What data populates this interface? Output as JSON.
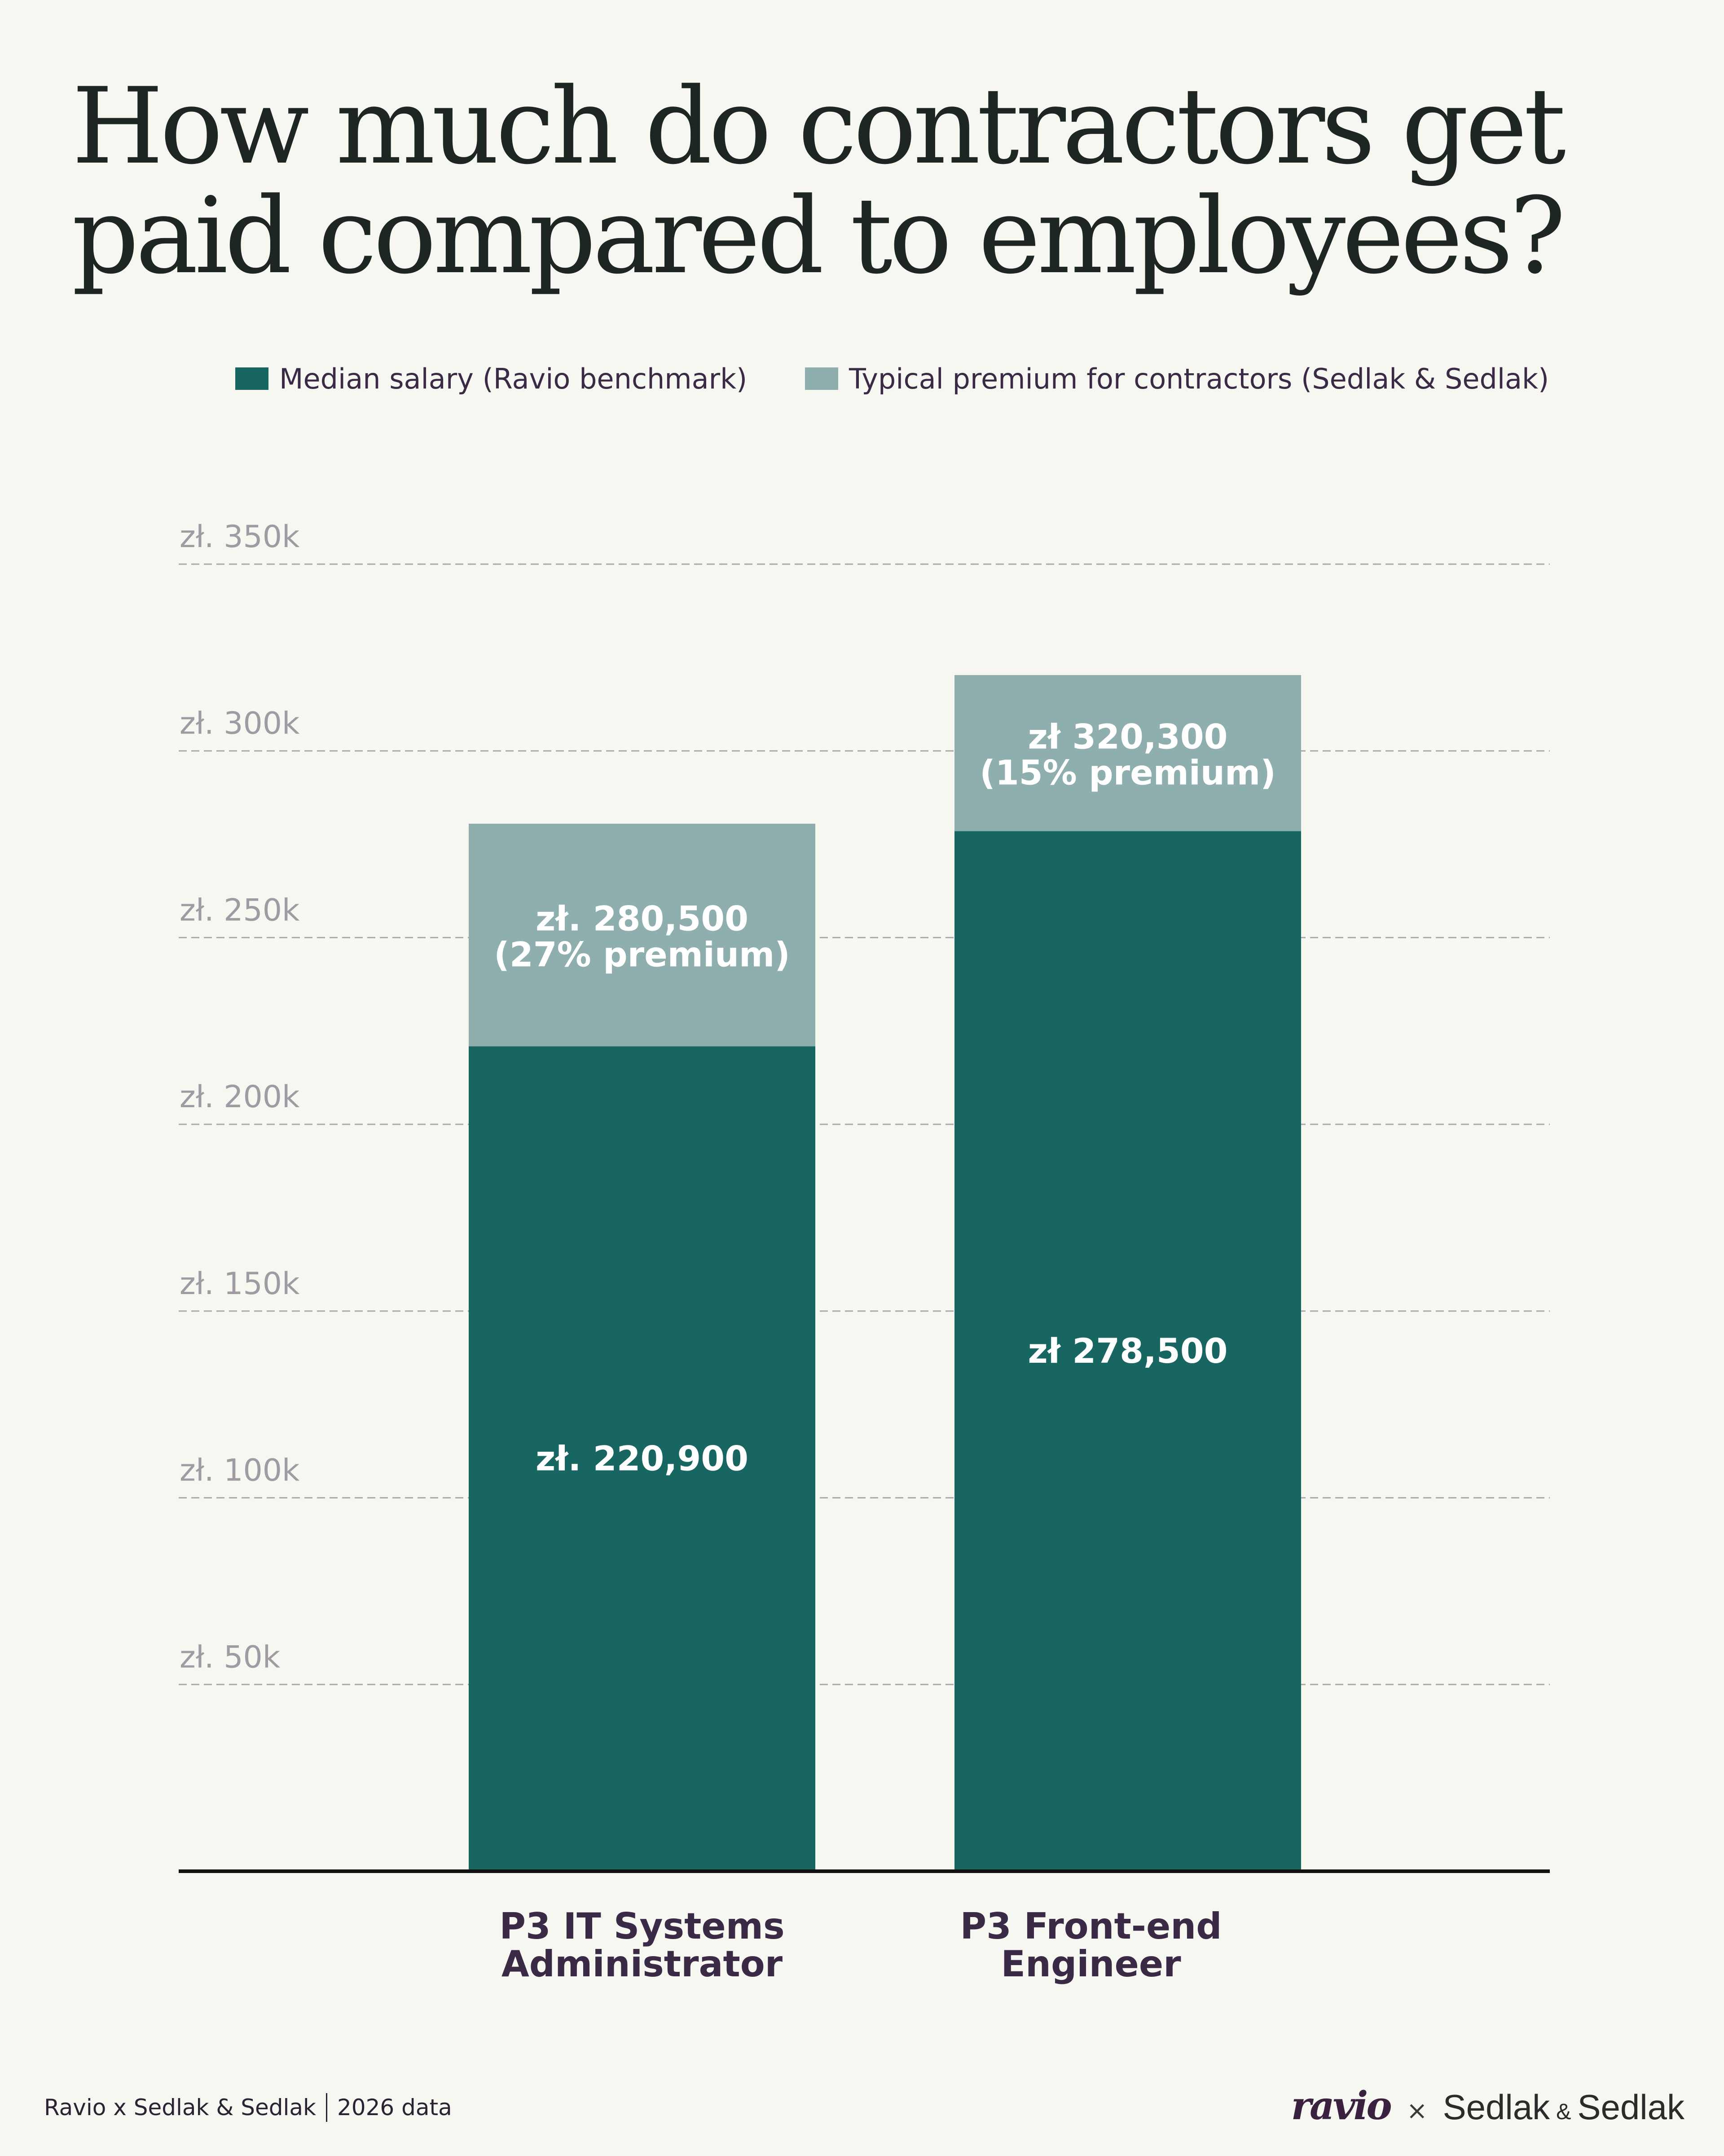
{
  "title": "How much do contractors get paid compared to employees?",
  "legend": {
    "items": [
      {
        "label": "Median salary (Ravio benchmark)",
        "color": "#176661"
      },
      {
        "label": "Typical premium for contractors (Sedlak & Sedlak)",
        "color": "#8fafaf"
      }
    ]
  },
  "chart_data": {
    "type": "bar",
    "stacked": true,
    "categories": [
      "P3 IT Systems Administrator",
      "P3 Front-end Engineer"
    ],
    "category_lines": [
      [
        "P3 IT Systems",
        "Administrator"
      ],
      [
        "P3 Front-end",
        "Engineer"
      ]
    ],
    "series": [
      {
        "name": "Median salary (Ravio benchmark)",
        "values": [
          220900,
          278500
        ],
        "color": "#176661"
      },
      {
        "name": "Typical premium for contractors (Sedlak & Sedlak)",
        "values": [
          59600,
          41800
        ],
        "color": "#8fafaf"
      }
    ],
    "totals": [
      280500,
      320300
    ],
    "data_labels": {
      "base": [
        "zł. 220,900",
        "zł 278,500"
      ],
      "premium": [
        [
          "zł. 280,500",
          "(27% premium)"
        ],
        [
          "zł 320,300",
          "(15% premium)"
        ]
      ]
    },
    "ylim": [
      0,
      350000
    ],
    "yticks": [
      50000,
      100000,
      150000,
      200000,
      250000,
      300000,
      350000
    ],
    "ytick_labels": [
      "zł. 50k",
      "zł.  100k",
      "zł. 150k",
      "zł. 200k",
      "zł. 250k",
      "zł. 300k",
      "zł. 350k"
    ],
    "grid": true,
    "legend_position": "top-center"
  },
  "footer": {
    "source": "Ravio x Sedlak & Sedlak",
    "year_note": "2026 data"
  },
  "logos": {
    "ravio": "ravio",
    "times": "×",
    "sedlak": "Sedlak",
    "amp": "&"
  }
}
